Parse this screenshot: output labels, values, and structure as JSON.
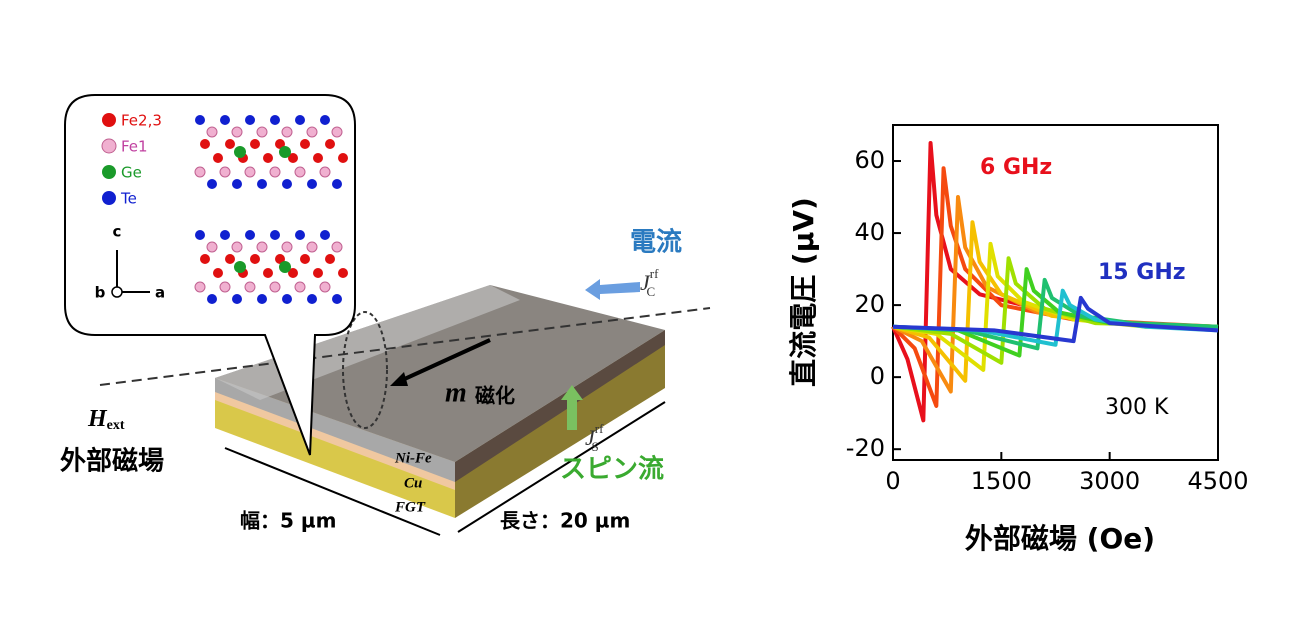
{
  "diagram": {
    "legend": [
      "Fe2,3",
      "Fe1",
      "Ge",
      "Te"
    ],
    "axes": {
      "c": "c",
      "b": "b",
      "a": "a"
    },
    "current": "電流",
    "current_symbol": {
      "main": "J",
      "sup": "rf",
      "sub": "C"
    },
    "field_symbol": {
      "main": "H",
      "sub": "ext"
    },
    "field": "外部磁場",
    "magnetization_symbol": "m",
    "magnetization": "磁化",
    "layers": [
      "Ni-Fe",
      "Cu",
      "FGT"
    ],
    "spin_symbol": {
      "main": "J",
      "sup": "rf",
      "sub": "S"
    },
    "spin_current": "スピン流",
    "width": "幅：5 µm",
    "length": "長さ：20 µm"
  },
  "chart_data": {
    "type": "line",
    "x_label": "外部磁場 (Oe)",
    "y_label": "直流電圧 (µV)",
    "annotations": [
      "6 GHz",
      "15 GHz",
      "300 K"
    ],
    "xlim": [
      0,
      4500
    ],
    "xticks": [
      0,
      1500,
      3000,
      4500
    ],
    "ylim": [
      -23,
      70
    ],
    "yticks": [
      -20,
      0,
      20,
      40,
      60
    ],
    "series": [
      {
        "color": "#e8101c",
        "x": [
          0,
          200,
          420,
          520,
          600,
          800,
          1200,
          1800
        ],
        "values": [
          14,
          5,
          -12,
          65,
          45,
          30,
          23,
          20
        ]
      },
      {
        "color": "#f54a10",
        "x": [
          0,
          300,
          600,
          700,
          800,
          1000,
          1500,
          2500,
          4500
        ],
        "values": [
          14,
          8,
          -8,
          58,
          42,
          30,
          20,
          16,
          14
        ]
      },
      {
        "color": "#f88a10",
        "x": [
          0,
          400,
          800,
          900,
          1000,
          1300,
          2000,
          3000,
          4500
        ],
        "values": [
          14,
          10,
          -4,
          50,
          36,
          25,
          18,
          15,
          14
        ]
      },
      {
        "color": "#f5c000",
        "x": [
          0,
          500,
          1000,
          1100,
          1200,
          1500,
          2200,
          3200,
          4500
        ],
        "values": [
          14,
          11,
          -1,
          43,
          32,
          23,
          17,
          15,
          14
        ]
      },
      {
        "color": "#e0e000",
        "x": [
          0,
          600,
          1250,
          1350,
          1450,
          1800,
          2500,
          3500,
          4500
        ],
        "values": [
          14,
          12,
          2,
          37,
          28,
          21,
          16,
          14,
          14
        ]
      },
      {
        "color": "#a0e000",
        "x": [
          0,
          800,
          1500,
          1600,
          1700,
          2100,
          2800,
          4500
        ],
        "values": [
          14,
          12,
          4,
          33,
          26,
          19,
          15,
          14
        ]
      },
      {
        "color": "#40d020",
        "x": [
          0,
          900,
          1750,
          1850,
          1950,
          2300,
          3000,
          4500
        ],
        "values": [
          14,
          13,
          6,
          30,
          24,
          18,
          15,
          14
        ]
      },
      {
        "color": "#20c070",
        "x": [
          0,
          1000,
          2000,
          2100,
          2200,
          2600,
          3300,
          4500
        ],
        "values": [
          14,
          13,
          8,
          27,
          22,
          17,
          15,
          14
        ]
      },
      {
        "color": "#20c0d0",
        "x": [
          0,
          1200,
          2250,
          2350,
          2450,
          2800,
          3500,
          4500
        ],
        "values": [
          14,
          13,
          9,
          24,
          20,
          16,
          14,
          13
        ]
      },
      {
        "color": "#2838d0",
        "x": [
          0,
          1400,
          2500,
          2600,
          2700,
          3000,
          3700,
          4500
        ],
        "values": [
          14,
          13,
          10,
          22,
          19,
          15,
          14,
          13
        ]
      }
    ]
  }
}
